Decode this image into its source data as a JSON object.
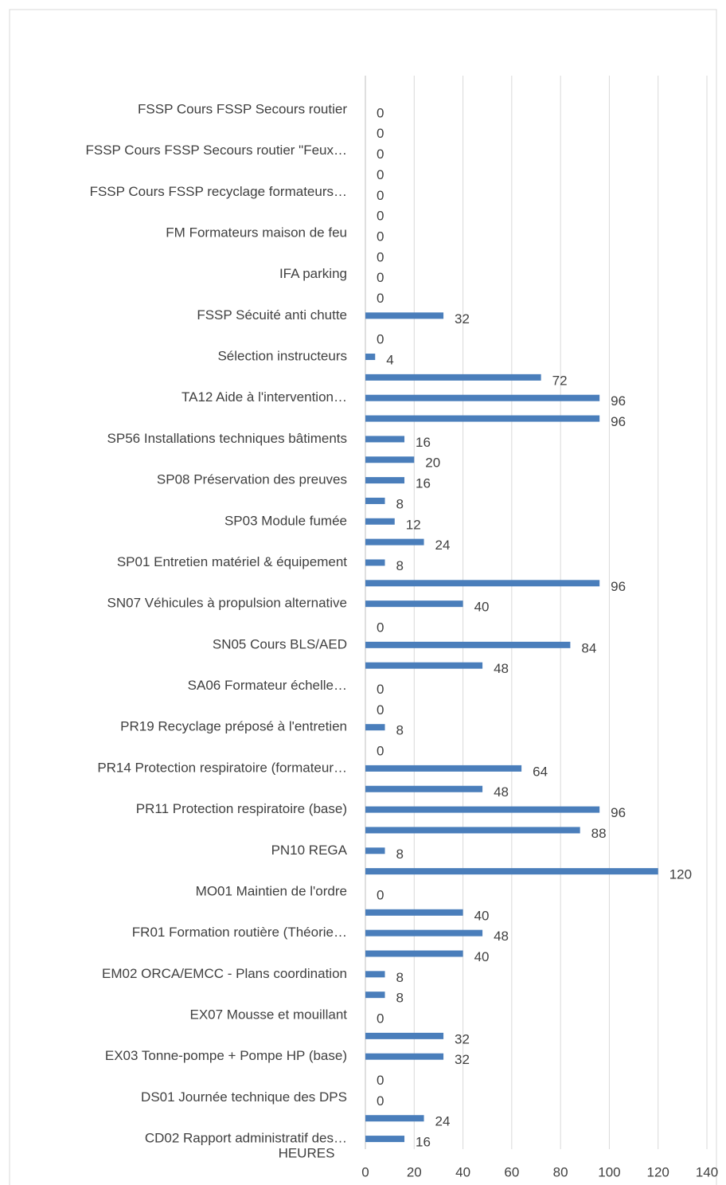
{
  "chart_data": {
    "type": "bar",
    "orientation": "horizontal",
    "x_axis_label": "HEURES",
    "categories": [
      "FSSP  Cours FSSP Secours routier",
      null,
      "FSSP  Cours FSSP Secours routier \"Feux…",
      null,
      "FSSP  Cours FSSP recyclage formateurs…",
      null,
      "FM  Formateurs maison de feu",
      null,
      "IFA parking",
      null,
      "FSSP  Sécuité anti chutte ",
      null,
      "Sélection instructeurs",
      null,
      "TA12  Aide à l'intervention…",
      null,
      "SP56  Installations techniques bâtiments",
      null,
      "SP08  Préservation des preuves",
      null,
      "SP03  Module fumée",
      null,
      "SP01  Entretien matériel & équipement",
      null,
      "SN07  Véhicules à propulsion alternative",
      null,
      "SN05  Cours BLS/AED",
      null,
      "SA06  Formateur échelle…",
      null,
      "PR19  Recyclage préposé à l'entretien",
      null,
      "PR14  Protection respiratoire (formateur…",
      null,
      "PR11  Protection respiratoire (base)",
      null,
      "PN10  REGA",
      null,
      "MO01  Maintien de l'ordre",
      null,
      "FR01  Formation routière (Théorie…",
      null,
      "EM02  ORCA/EMCC - Plans coordination",
      null,
      "EX07  Mousse et mouillant",
      null,
      "EX03  Tonne-pompe + Pompe HP (base)",
      null,
      "DS01  Journée technique des DPS",
      null,
      "CD02  Rapport administratif des…"
    ],
    "values": [
      0,
      0,
      0,
      0,
      0,
      0,
      0,
      0,
      0,
      0,
      32,
      0,
      4,
      72,
      96,
      96,
      16,
      20,
      16,
      8,
      12,
      24,
      8,
      96,
      40,
      0,
      84,
      48,
      0,
      0,
      8,
      0,
      64,
      48,
      96,
      88,
      8,
      120,
      0,
      40,
      48,
      40,
      8,
      8,
      0,
      32,
      32,
      0,
      0,
      24,
      16
    ],
    "color": "#4a7ebb",
    "xlim": [
      0,
      140
    ],
    "xticks": [
      0,
      20,
      40,
      60,
      80,
      100,
      120,
      140
    ],
    "grid": true
  }
}
